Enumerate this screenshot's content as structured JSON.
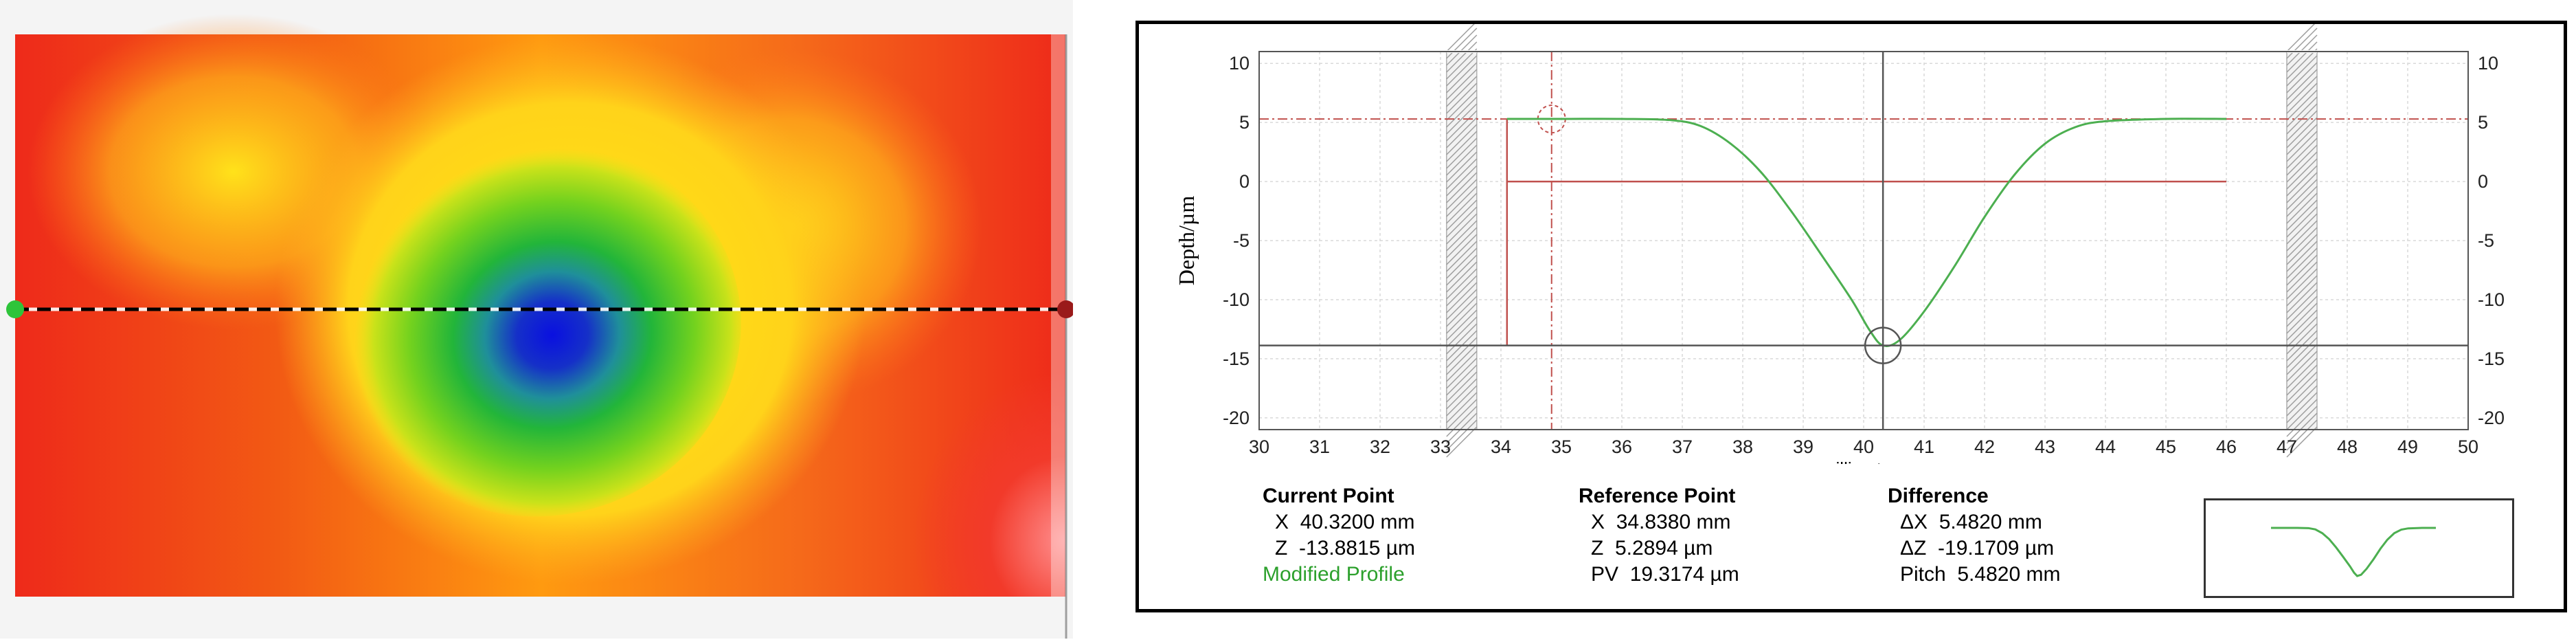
{
  "chart_data": {
    "type": "line",
    "xlabel": "millimetres",
    "ylabel": "Depth/µm",
    "xlim": [
      30,
      50
    ],
    "ylim": [
      -21,
      11
    ],
    "x_ticks": [
      30,
      31,
      32,
      33,
      34,
      35,
      36,
      37,
      38,
      39,
      40,
      41,
      42,
      43,
      44,
      45,
      46,
      47,
      48,
      49,
      50
    ],
    "y_ticks": [
      10,
      5,
      0,
      -5,
      -10,
      -15,
      -20
    ],
    "grid": true,
    "series": [
      {
        "values": [
          [
            34.1,
            5.3
          ],
          [
            35.0,
            5.3
          ],
          [
            36.0,
            5.3
          ],
          [
            36.8,
            5.2
          ],
          [
            37.3,
            4.7
          ],
          [
            37.8,
            3.2
          ],
          [
            38.3,
            0.8
          ],
          [
            38.8,
            -2.5
          ],
          [
            39.3,
            -6.2
          ],
          [
            39.8,
            -10.0
          ],
          [
            40.1,
            -12.6
          ],
          [
            40.32,
            -13.88
          ],
          [
            40.6,
            -13.4
          ],
          [
            41.0,
            -11.0
          ],
          [
            41.5,
            -7.2
          ],
          [
            42.0,
            -3.0
          ],
          [
            42.5,
            0.6
          ],
          [
            43.0,
            3.2
          ],
          [
            43.5,
            4.6
          ],
          [
            44.0,
            5.1
          ],
          [
            45.0,
            5.3
          ],
          [
            46.0,
            5.3
          ]
        ],
        "color": "#4caf50"
      }
    ],
    "annotations": {
      "current_x": 40.32,
      "current_z": -13.8815,
      "reference_x": 34.838,
      "reference_z": 5.2894,
      "baseline_z": 0,
      "baseline_from_x": 34.1,
      "baseline_to_x": 46.0,
      "left_marker_x": 34.1,
      "left_hatch_x": [
        33.1,
        33.6
      ],
      "right_hatch_x": [
        47.0,
        47.5
      ]
    }
  },
  "readout": {
    "current_point": {
      "heading": "Current Point",
      "x_label": "X",
      "x_value": "40.3200 mm",
      "z_label": "Z",
      "z_value": "-13.8815 µm",
      "mode": "Modified Profile"
    },
    "reference_point": {
      "heading": "Reference Point",
      "x_label": "X",
      "x_value": "34.8380 mm",
      "z_label": "Z",
      "z_value": "5.2894 µm",
      "pv_label": "PV",
      "pv_value": "19.3174 µm"
    },
    "difference": {
      "heading": "Difference",
      "dx_label": "ΔX",
      "dx_value": "5.4820 mm",
      "dz_label": "ΔZ",
      "dz_value": "-19.1709 µm",
      "pitch_label": "Pitch",
      "pitch_value": "5.4820 mm"
    }
  },
  "colors": {
    "profile": "#4caf50",
    "reference_line": "#c0504d",
    "cursor_line": "#555555",
    "grid": "#d9d9d9",
    "heat_low": "#0a14c8",
    "heat_high": "#ee2a1a"
  }
}
